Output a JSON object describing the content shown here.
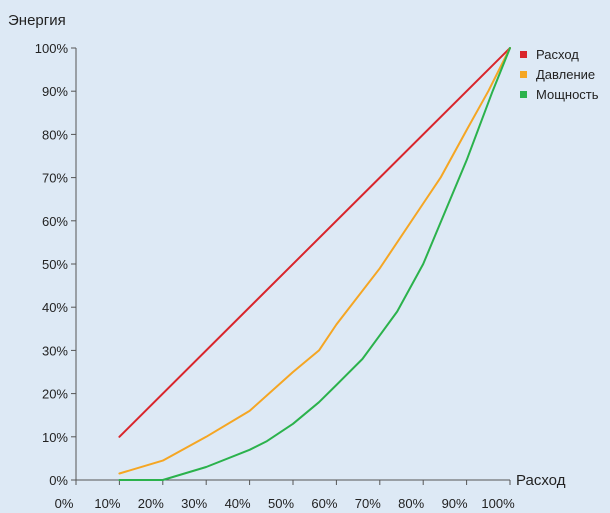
{
  "chart_data": {
    "type": "line",
    "ylabel": "Энергия",
    "xlabel": "Расход",
    "x_ticks": [
      "0%",
      "10%",
      "20%",
      "30%",
      "40%",
      "50%",
      "60%",
      "70%",
      "80%",
      "90%",
      "100%"
    ],
    "y_ticks": [
      "0%",
      "10%",
      "20%",
      "30%",
      "40%",
      "50%",
      "60%",
      "70%",
      "80%",
      "90%",
      "100%"
    ],
    "xlim": [
      0,
      100
    ],
    "ylim": [
      0,
      100
    ],
    "grid": false,
    "legend_position": "top-right",
    "series": [
      {
        "name": "Расход",
        "color": "#d9252b",
        "x": [
          10,
          100
        ],
        "y": [
          10,
          100
        ]
      },
      {
        "name": "Давление",
        "color": "#f5a623",
        "x": [
          10,
          20,
          30,
          40,
          50,
          56,
          60,
          70,
          80,
          84,
          90,
          95,
          100
        ],
        "y": [
          1.5,
          4.5,
          10,
          16,
          25,
          30,
          36,
          49,
          64,
          70,
          81,
          90,
          100
        ]
      },
      {
        "name": "Мощность",
        "color": "#2bb24c",
        "x": [
          10,
          20,
          30,
          40,
          44,
          50,
          56,
          60,
          66,
          70,
          74,
          80,
          90,
          96,
          100
        ],
        "y": [
          0,
          0,
          3,
          7,
          9,
          13,
          18,
          22,
          28,
          33.5,
          39,
          50,
          74,
          90,
          100
        ]
      }
    ]
  }
}
